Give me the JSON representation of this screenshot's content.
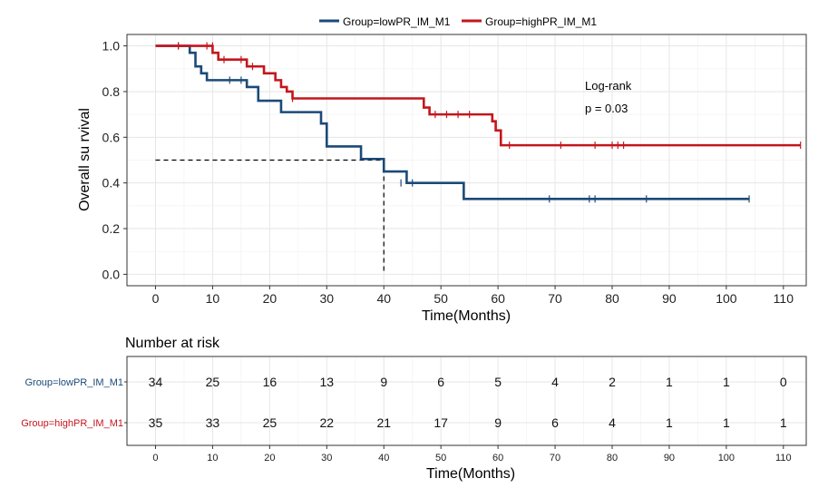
{
  "legend": {
    "items": [
      {
        "label": "Group=lowPR_IM_M1",
        "color": "#1b4a78"
      },
      {
        "label": "Group=highPR_IM_M1",
        "color": "#c4161c"
      }
    ]
  },
  "chart_data": [
    {
      "type": "line",
      "subtype": "kaplan-meier",
      "xlabel": "Time(Months)",
      "ylabel": "Overall su rvival",
      "xlim": [
        -5,
        114
      ],
      "ylim": [
        -0.05,
        1.05
      ],
      "xticks": [
        0,
        10,
        20,
        30,
        40,
        50,
        60,
        70,
        80,
        90,
        100,
        110
      ],
      "yticks": [
        0.0,
        0.2,
        0.4,
        0.6,
        0.8,
        1.0
      ],
      "ytick_labels": [
        "0.0",
        "0.2",
        "0.4",
        "0.6",
        "0.8",
        "1.0"
      ],
      "annotation": {
        "line1": "Log-rank",
        "line2": "p = 0.03"
      },
      "median_line": {
        "y": 0.5,
        "x": 40
      },
      "series": [
        {
          "name": "Group=lowPR_IM_M1",
          "color": "#1b4a78",
          "steps": [
            [
              0,
              1.0
            ],
            [
              6,
              0.97
            ],
            [
              7,
              0.91
            ],
            [
              8,
              0.88
            ],
            [
              9,
              0.85
            ],
            [
              16,
              0.82
            ],
            [
              18,
              0.76
            ],
            [
              22,
              0.71
            ],
            [
              29,
              0.66
            ],
            [
              30,
              0.56
            ],
            [
              36,
              0.505
            ],
            [
              40,
              0.45
            ],
            [
              44,
              0.4
            ],
            [
              54,
              0.33
            ],
            [
              104,
              0.33
            ]
          ],
          "censored": [
            [
              4,
              1.0
            ],
            [
              13,
              0.85
            ],
            [
              15,
              0.85
            ],
            [
              43,
              0.4
            ],
            [
              45,
              0.4
            ],
            [
              69,
              0.33
            ],
            [
              76,
              0.33
            ],
            [
              77,
              0.33
            ],
            [
              86,
              0.33
            ],
            [
              104,
              0.33
            ]
          ]
        },
        {
          "name": "Group=highPR_IM_M1",
          "color": "#c4161c",
          "steps": [
            [
              0,
              1.0
            ],
            [
              10,
              0.97
            ],
            [
              11,
              0.94
            ],
            [
              16,
              0.91
            ],
            [
              19,
              0.88
            ],
            [
              21,
              0.85
            ],
            [
              22,
              0.82
            ],
            [
              23,
              0.8
            ],
            [
              24,
              0.77
            ],
            [
              47,
              0.73
            ],
            [
              48,
              0.7
            ],
            [
              59,
              0.67
            ],
            [
              59.6,
              0.63
            ],
            [
              60.5,
              0.565
            ],
            [
              113,
              0.565
            ]
          ],
          "censored": [
            [
              4,
              1.0
            ],
            [
              9,
              1.0
            ],
            [
              10,
              1.0
            ],
            [
              12,
              0.94
            ],
            [
              15,
              0.94
            ],
            [
              17,
              0.91
            ],
            [
              24,
              0.77
            ],
            [
              49,
              0.7
            ],
            [
              51,
              0.7
            ],
            [
              53,
              0.7
            ],
            [
              55,
              0.7
            ],
            [
              62,
              0.565
            ],
            [
              71,
              0.565
            ],
            [
              77,
              0.565
            ],
            [
              80,
              0.565
            ],
            [
              81,
              0.565
            ],
            [
              82,
              0.565
            ],
            [
              113,
              0.565
            ]
          ]
        }
      ]
    },
    {
      "type": "table",
      "title": "Number at risk",
      "xlabel": "Time(Months)",
      "xticks": [
        0,
        10,
        20,
        30,
        40,
        50,
        60,
        70,
        80,
        90,
        100,
        110
      ],
      "rows": [
        {
          "label": "Group=lowPR_IM_M1",
          "color": "#1b4a78",
          "values": [
            34,
            25,
            16,
            13,
            9,
            6,
            5,
            4,
            2,
            1,
            1,
            0
          ]
        },
        {
          "label": "Group=highPR_IM_M1",
          "color": "#c4161c",
          "values": [
            35,
            33,
            25,
            22,
            21,
            17,
            9,
            6,
            4,
            1,
            1,
            1
          ]
        }
      ]
    }
  ]
}
